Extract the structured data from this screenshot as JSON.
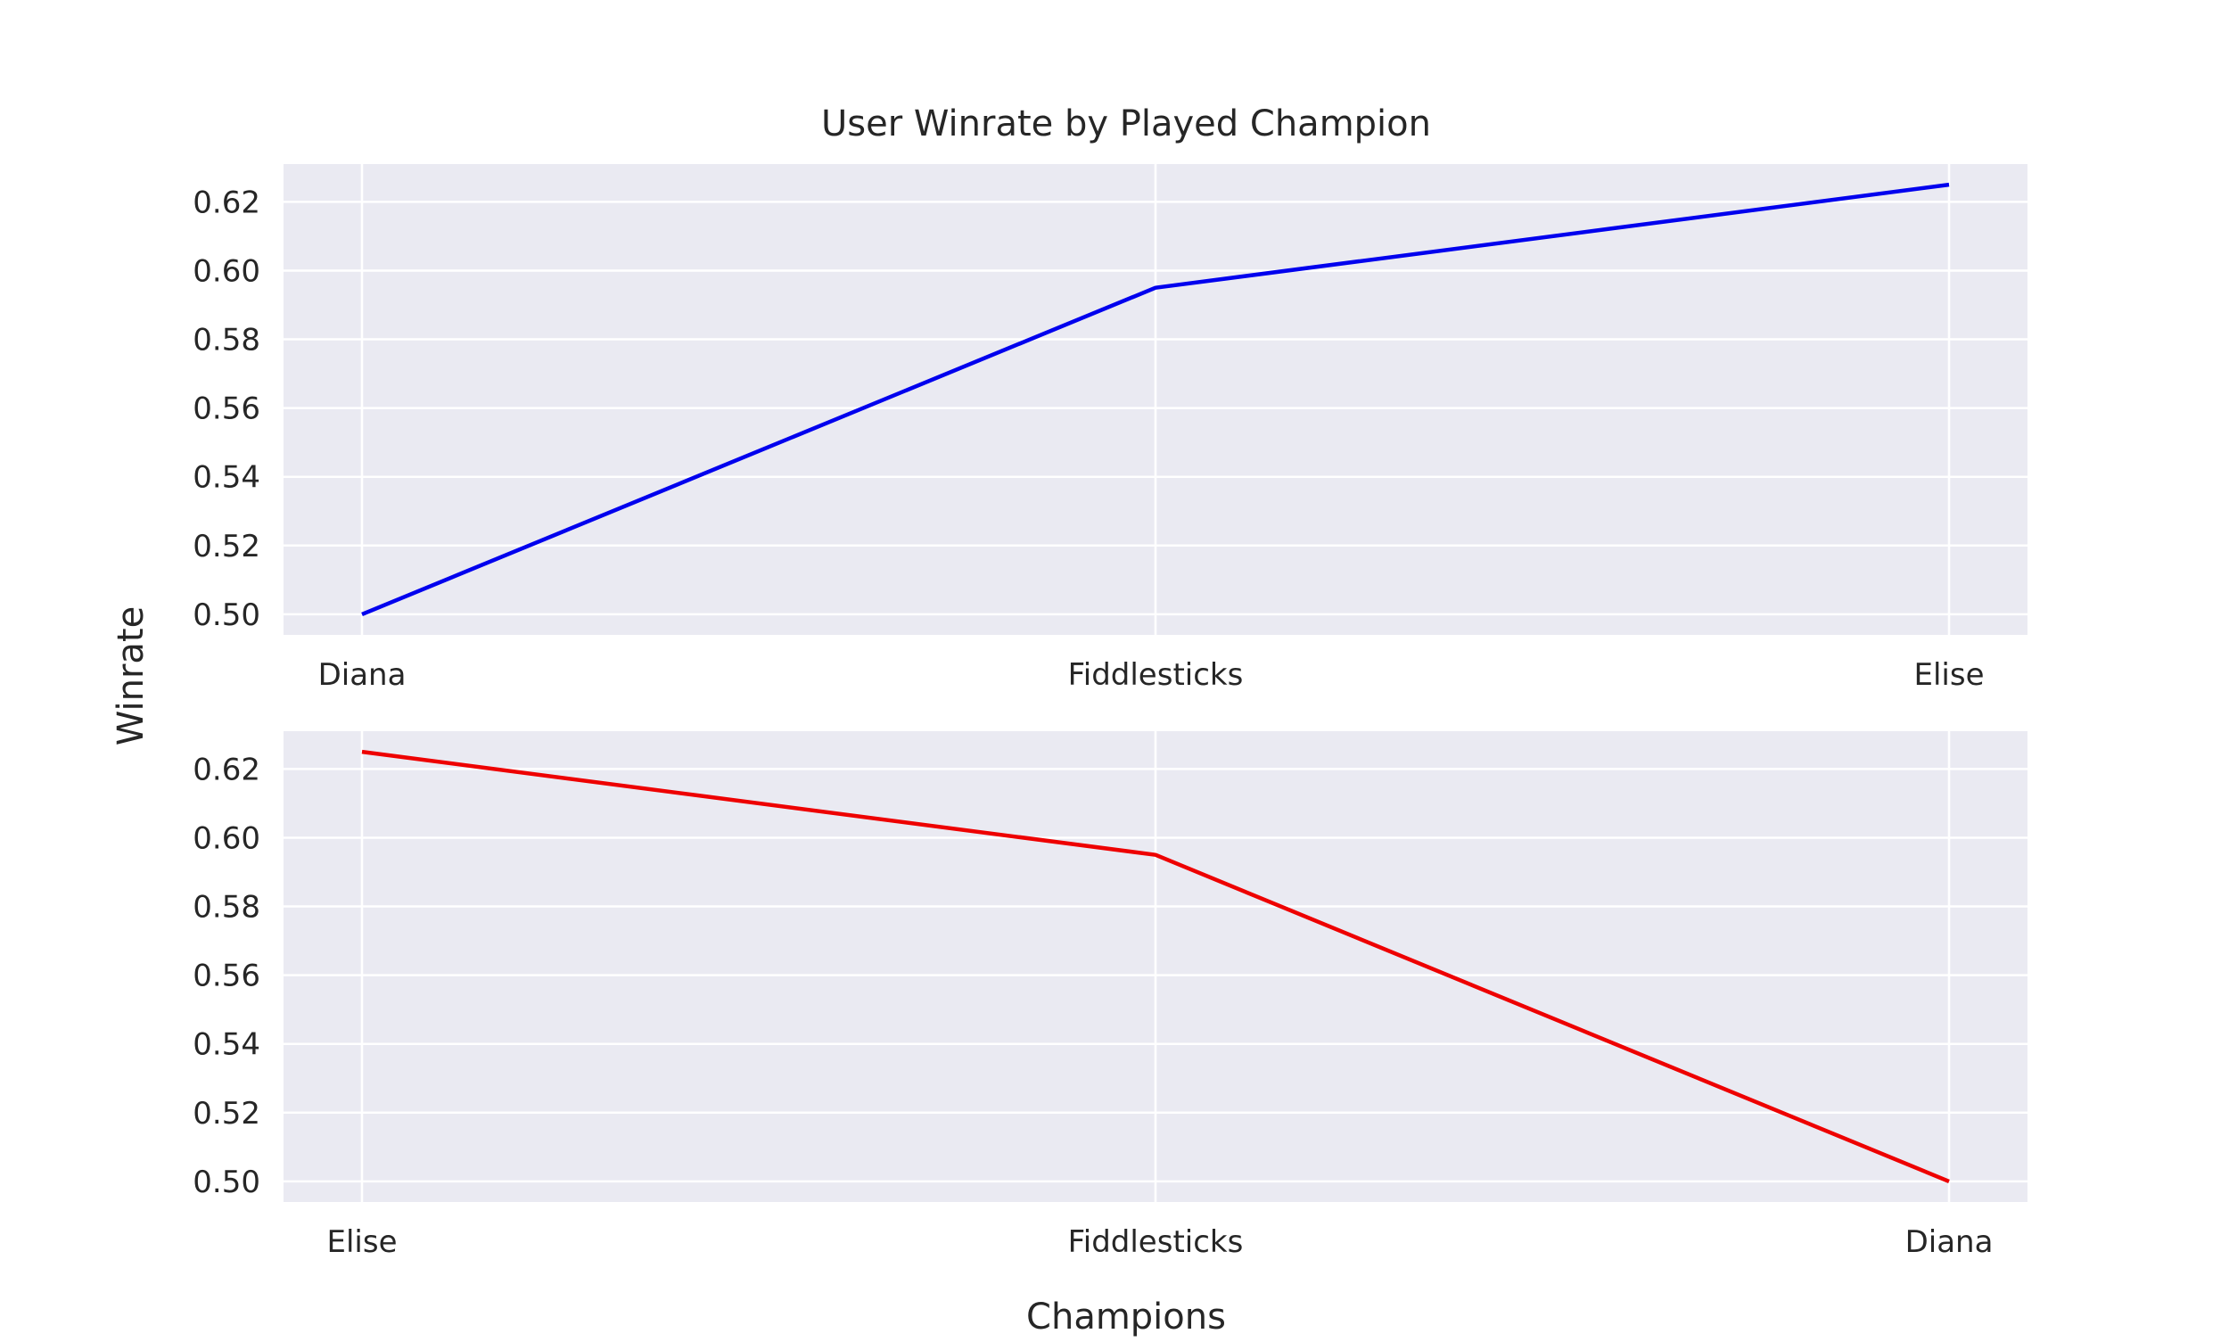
{
  "chart_data": {
    "title": "User Winrate by Played Champion",
    "xlabel": "Champions",
    "ylabel": "Winrate",
    "grid": true,
    "colors": {
      "background": "#eaeaf2",
      "grid": "#ffffff"
    },
    "panels": [
      {
        "type": "line",
        "categories": [
          "Diana",
          "Fiddlesticks",
          "Elise"
        ],
        "series": [
          {
            "values": [
              0.5,
              0.595,
              0.625
            ],
            "color": "#0000ee"
          }
        ],
        "ylim": [
          0.494,
          0.631
        ],
        "yticks": [
          0.5,
          0.52,
          0.54,
          0.56,
          0.58,
          0.6,
          0.62
        ],
        "ytick_labels": [
          "0.50",
          "0.52",
          "0.54",
          "0.56",
          "0.58",
          "0.60",
          "0.62"
        ]
      },
      {
        "type": "line",
        "categories": [
          "Elise",
          "Fiddlesticks",
          "Diana"
        ],
        "series": [
          {
            "values": [
              0.625,
              0.595,
              0.5
            ],
            "color": "#ee0000"
          }
        ],
        "ylim": [
          0.494,
          0.631
        ],
        "yticks": [
          0.5,
          0.52,
          0.54,
          0.56,
          0.58,
          0.6,
          0.62
        ],
        "ytick_labels": [
          "0.50",
          "0.52",
          "0.54",
          "0.56",
          "0.58",
          "0.60",
          "0.62"
        ]
      }
    ]
  }
}
